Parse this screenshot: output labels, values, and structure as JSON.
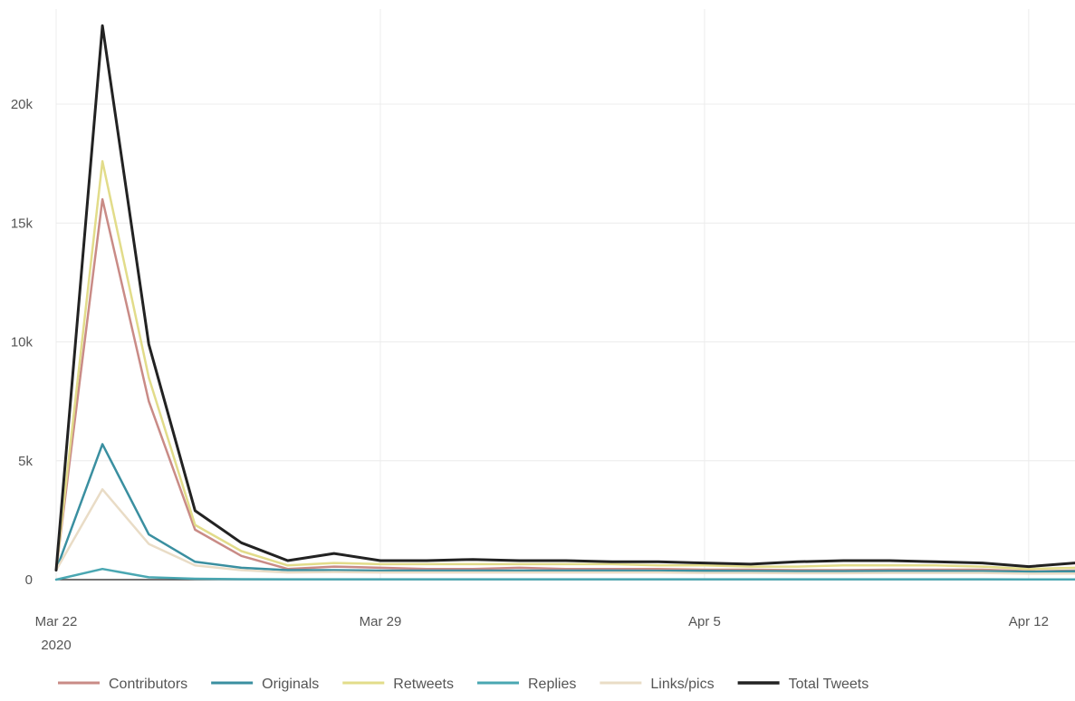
{
  "chart_data": {
    "type": "line",
    "title": "",
    "xlabel": "",
    "ylabel": "",
    "x_ticks": [
      {
        "date": "2020-03-22",
        "label": "Mar 22",
        "sublabel": "2020"
      },
      {
        "date": "2020-03-29",
        "label": "Mar 29",
        "sublabel": ""
      },
      {
        "date": "2020-04-05",
        "label": "Apr 5",
        "sublabel": ""
      },
      {
        "date": "2020-04-12",
        "label": "Apr 12",
        "sublabel": ""
      }
    ],
    "xlim": [
      "2020-03-22",
      "2020-04-13"
    ],
    "ylim": [
      0,
      24000
    ],
    "y_ticks": [
      {
        "value": 0,
        "label": "0"
      },
      {
        "value": 5000,
        "label": "5k"
      },
      {
        "value": 10000,
        "label": "10k"
      },
      {
        "value": 15000,
        "label": "15k"
      },
      {
        "value": 20000,
        "label": "20k"
      }
    ],
    "grid": true,
    "legend_position": "bottom",
    "x": [
      "2020-03-22",
      "2020-03-23",
      "2020-03-24",
      "2020-03-25",
      "2020-03-26",
      "2020-03-27",
      "2020-03-28",
      "2020-03-29",
      "2020-03-30",
      "2020-03-31",
      "2020-04-01",
      "2020-04-02",
      "2020-04-03",
      "2020-04-04",
      "2020-04-05",
      "2020-04-06",
      "2020-04-07",
      "2020-04-08",
      "2020-04-09",
      "2020-04-10",
      "2020-04-11",
      "2020-04-12",
      "2020-04-13"
    ],
    "series": [
      {
        "name": "Contributors",
        "color": "#c98b86",
        "values": [
          400,
          16000,
          7500,
          2100,
          1000,
          450,
          550,
          500,
          450,
          450,
          500,
          450,
          450,
          450,
          420,
          420,
          400,
          400,
          420,
          420,
          420,
          350,
          380
        ]
      },
      {
        "name": "Originals",
        "color": "#3a8fa0",
        "values": [
          400,
          5700,
          1900,
          750,
          500,
          400,
          400,
          380,
          380,
          380,
          380,
          380,
          380,
          370,
          370,
          360,
          350,
          350,
          360,
          360,
          350,
          330,
          350
        ]
      },
      {
        "name": "Retweets",
        "color": "#e2dc8a",
        "values": [
          400,
          17600,
          8500,
          2300,
          1200,
          600,
          700,
          650,
          650,
          650,
          650,
          650,
          650,
          600,
          600,
          550,
          550,
          600,
          600,
          600,
          550,
          450,
          500
        ]
      },
      {
        "name": "Replies",
        "color": "#4aa7b2",
        "values": [
          0,
          450,
          100,
          40,
          20,
          15,
          15,
          15,
          15,
          15,
          15,
          15,
          15,
          15,
          15,
          15,
          15,
          15,
          15,
          15,
          15,
          10,
          10
        ]
      },
      {
        "name": "Links/pics",
        "color": "#e9dcc6",
        "values": [
          400,
          3800,
          1500,
          600,
          400,
          300,
          320,
          300,
          300,
          300,
          300,
          300,
          300,
          300,
          280,
          280,
          270,
          270,
          280,
          280,
          280,
          250,
          260
        ]
      },
      {
        "name": "Total Tweets",
        "color": "#222222",
        "values": [
          400,
          23300,
          9900,
          2900,
          1550,
          800,
          1100,
          800,
          800,
          850,
          800,
          800,
          750,
          750,
          700,
          650,
          750,
          800,
          800,
          750,
          700,
          550,
          700
        ]
      }
    ]
  }
}
